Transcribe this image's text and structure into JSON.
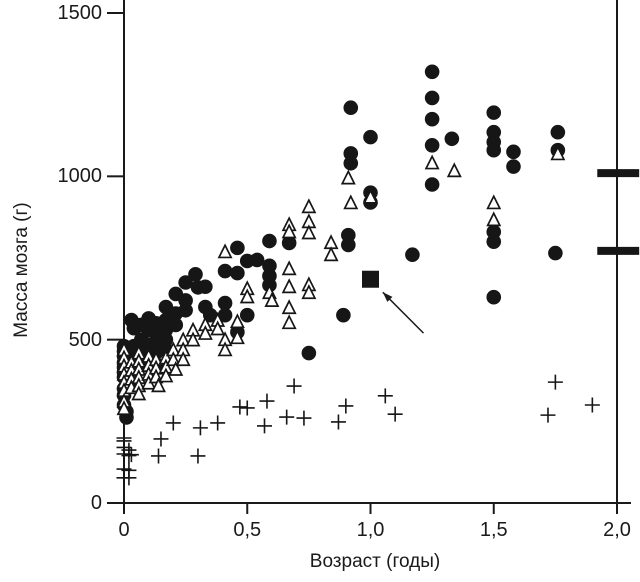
{
  "chart_data": {
    "type": "scatter",
    "title": "",
    "xlabel": "Возраст (годы)",
    "ylabel": "Масса мозга (г)",
    "xlim": [
      -0.07,
      2.09
    ],
    "ylim": [
      0,
      1540
    ],
    "grid": false,
    "legend": "none",
    "decimal_separator": ",",
    "colors": {
      "marker": "#161616",
      "axis": "#1a1a1a",
      "triangle_fill": "#ffffff"
    },
    "x_ticks": [
      {
        "value": 0,
        "label": "0"
      },
      {
        "value": 0.5,
        "label": "0,5"
      },
      {
        "value": 1.0,
        "label": "1,0"
      },
      {
        "value": 1.5,
        "label": "1,5"
      },
      {
        "value": 2.0,
        "label": "2,0"
      }
    ],
    "y_ticks": [
      {
        "value": 0,
        "label": "0"
      },
      {
        "value": 500,
        "label": "500"
      },
      {
        "value": 1000,
        "label": "1000"
      },
      {
        "value": 1500,
        "label": "1500"
      }
    ],
    "series": [
      {
        "name": "filled-circle-series",
        "marker": "filled-circle",
        "points": [
          [
            0.0,
            480
          ],
          [
            0.0,
            465
          ],
          [
            0.0,
            450
          ],
          [
            0.0,
            430
          ],
          [
            0.0,
            415
          ],
          [
            0.0,
            400
          ],
          [
            0.0,
            385
          ],
          [
            0.0,
            350
          ],
          [
            0.0,
            330
          ],
          [
            0.0,
            300
          ],
          [
            0.01,
            280
          ],
          [
            0.01,
            262
          ],
          [
            0.03,
            560
          ],
          [
            0.04,
            535
          ],
          [
            0.04,
            480
          ],
          [
            0.04,
            455
          ],
          [
            0.04,
            430
          ],
          [
            0.04,
            410
          ],
          [
            0.07,
            545
          ],
          [
            0.07,
            500
          ],
          [
            0.07,
            470
          ],
          [
            0.07,
            445
          ],
          [
            0.07,
            420
          ],
          [
            0.1,
            565
          ],
          [
            0.1,
            530
          ],
          [
            0.1,
            485
          ],
          [
            0.1,
            455
          ],
          [
            0.1,
            435
          ],
          [
            0.13,
            550
          ],
          [
            0.13,
            520
          ],
          [
            0.13,
            490
          ],
          [
            0.13,
            460
          ],
          [
            0.13,
            425
          ],
          [
            0.17,
            600
          ],
          [
            0.17,
            560
          ],
          [
            0.17,
            530
          ],
          [
            0.17,
            500
          ],
          [
            0.17,
            470
          ],
          [
            0.21,
            640
          ],
          [
            0.21,
            580
          ],
          [
            0.21,
            545
          ],
          [
            0.25,
            675
          ],
          [
            0.25,
            620
          ],
          [
            0.25,
            590
          ],
          [
            0.29,
            700
          ],
          [
            0.3,
            660
          ],
          [
            0.33,
            662
          ],
          [
            0.33,
            600
          ],
          [
            0.35,
            575
          ],
          [
            0.41,
            710
          ],
          [
            0.41,
            612
          ],
          [
            0.41,
            575
          ],
          [
            0.46,
            781
          ],
          [
            0.46,
            704
          ],
          [
            0.46,
            523
          ],
          [
            0.5,
            741
          ],
          [
            0.5,
            575
          ],
          [
            0.54,
            744
          ],
          [
            0.59,
            802
          ],
          [
            0.59,
            726
          ],
          [
            0.59,
            695
          ],
          [
            0.59,
            667
          ],
          [
            0.67,
            796
          ],
          [
            0.75,
            459
          ],
          [
            0.89,
            575
          ],
          [
            0.91,
            820
          ],
          [
            0.91,
            790
          ],
          [
            0.92,
            1210
          ],
          [
            0.92,
            1070
          ],
          [
            0.92,
            1040
          ],
          [
            1.0,
            1120
          ],
          [
            1.0,
            950
          ],
          [
            1.0,
            920
          ],
          [
            1.17,
            760
          ],
          [
            1.25,
            1320
          ],
          [
            1.25,
            1240
          ],
          [
            1.25,
            1175
          ],
          [
            1.25,
            1095
          ],
          [
            1.25,
            975
          ],
          [
            1.33,
            1115
          ],
          [
            1.5,
            1195
          ],
          [
            1.5,
            1135
          ],
          [
            1.5,
            1105
          ],
          [
            1.5,
            1080
          ],
          [
            1.5,
            830
          ],
          [
            1.5,
            800
          ],
          [
            1.5,
            630
          ],
          [
            1.58,
            1075
          ],
          [
            1.58,
            1030
          ],
          [
            1.75,
            765
          ],
          [
            1.76,
            1135
          ],
          [
            1.76,
            1080
          ]
        ]
      },
      {
        "name": "open-triangle-series",
        "marker": "open-triangle",
        "points": [
          [
            0.0,
            468
          ],
          [
            0.0,
            443
          ],
          [
            0.0,
            418
          ],
          [
            0.0,
            393
          ],
          [
            0.0,
            368
          ],
          [
            0.0,
            343
          ],
          [
            0.0,
            310
          ],
          [
            0.0,
            288
          ],
          [
            0.03,
            430
          ],
          [
            0.03,
            405
          ],
          [
            0.03,
            378
          ],
          [
            0.03,
            352
          ],
          [
            0.06,
            458
          ],
          [
            0.06,
            433
          ],
          [
            0.06,
            408
          ],
          [
            0.06,
            383
          ],
          [
            0.06,
            358
          ],
          [
            0.06,
            333
          ],
          [
            0.1,
            448
          ],
          [
            0.1,
            420
          ],
          [
            0.1,
            393
          ],
          [
            0.1,
            366
          ],
          [
            0.13,
            438
          ],
          [
            0.13,
            412
          ],
          [
            0.13,
            385
          ],
          [
            0.14,
            358
          ],
          [
            0.17,
            443
          ],
          [
            0.17,
            415
          ],
          [
            0.17,
            388
          ],
          [
            0.2,
            468
          ],
          [
            0.2,
            438
          ],
          [
            0.21,
            408
          ],
          [
            0.24,
            498
          ],
          [
            0.24,
            468
          ],
          [
            0.24,
            438
          ],
          [
            0.28,
            528
          ],
          [
            0.28,
            498
          ],
          [
            0.33,
            545
          ],
          [
            0.33,
            518
          ],
          [
            0.38,
            558
          ],
          [
            0.38,
            532
          ],
          [
            0.41,
            768
          ],
          [
            0.41,
            499
          ],
          [
            0.41,
            468
          ],
          [
            0.46,
            554
          ],
          [
            0.46,
            505
          ],
          [
            0.5,
            655
          ],
          [
            0.5,
            630
          ],
          [
            0.59,
            643
          ],
          [
            0.6,
            619
          ],
          [
            0.67,
            851
          ],
          [
            0.67,
            829
          ],
          [
            0.67,
            716
          ],
          [
            0.67,
            661
          ],
          [
            0.67,
            597
          ],
          [
            0.67,
            551
          ],
          [
            0.75,
            906
          ],
          [
            0.75,
            860
          ],
          [
            0.75,
            826
          ],
          [
            0.75,
            667
          ],
          [
            0.75,
            643
          ],
          [
            0.84,
            796
          ],
          [
            0.84,
            759
          ],
          [
            0.91,
            994
          ],
          [
            0.92,
            918
          ],
          [
            1.0,
            935
          ],
          [
            1.25,
            1040
          ],
          [
            1.34,
            1016
          ],
          [
            1.5,
            918
          ],
          [
            1.5,
            866
          ],
          [
            1.76,
            1068
          ]
        ]
      },
      {
        "name": "plus-series",
        "marker": "plus",
        "points": [
          [
            0.0,
            199
          ],
          [
            0.0,
            190
          ],
          [
            0.0,
            170
          ],
          [
            0.0,
            150
          ],
          [
            0.02,
            162
          ],
          [
            0.02,
            145
          ],
          [
            0.03,
            148
          ],
          [
            0.0,
            104
          ],
          [
            0.02,
            100
          ],
          [
            0.0,
            77
          ],
          [
            0.02,
            77
          ],
          [
            0.14,
            144
          ],
          [
            0.15,
            196
          ],
          [
            0.2,
            245
          ],
          [
            0.3,
            144
          ],
          [
            0.31,
            230
          ],
          [
            0.38,
            245
          ],
          [
            0.47,
            294
          ],
          [
            0.5,
            291
          ],
          [
            0.57,
            236
          ],
          [
            0.58,
            312
          ],
          [
            0.66,
            263
          ],
          [
            0.69,
            358
          ],
          [
            0.73,
            260
          ],
          [
            0.87,
            248
          ],
          [
            0.9,
            297
          ],
          [
            1.06,
            328
          ],
          [
            1.1,
            272
          ],
          [
            1.72,
            269
          ],
          [
            1.75,
            370
          ],
          [
            1.9,
            300
          ]
        ]
      }
    ],
    "highlight": {
      "marker": "filled-square",
      "point": [
        1.0,
        685
      ]
    },
    "annotation_arrow": {
      "from": [
        1.215,
        520
      ],
      "to": [
        1.05,
        645
      ]
    },
    "reference_bars": [
      {
        "y": 1010,
        "x_from": 1.92,
        "x_to": 2.09
      },
      {
        "y": 772,
        "x_from": 1.92,
        "x_to": 2.09
      }
    ]
  }
}
